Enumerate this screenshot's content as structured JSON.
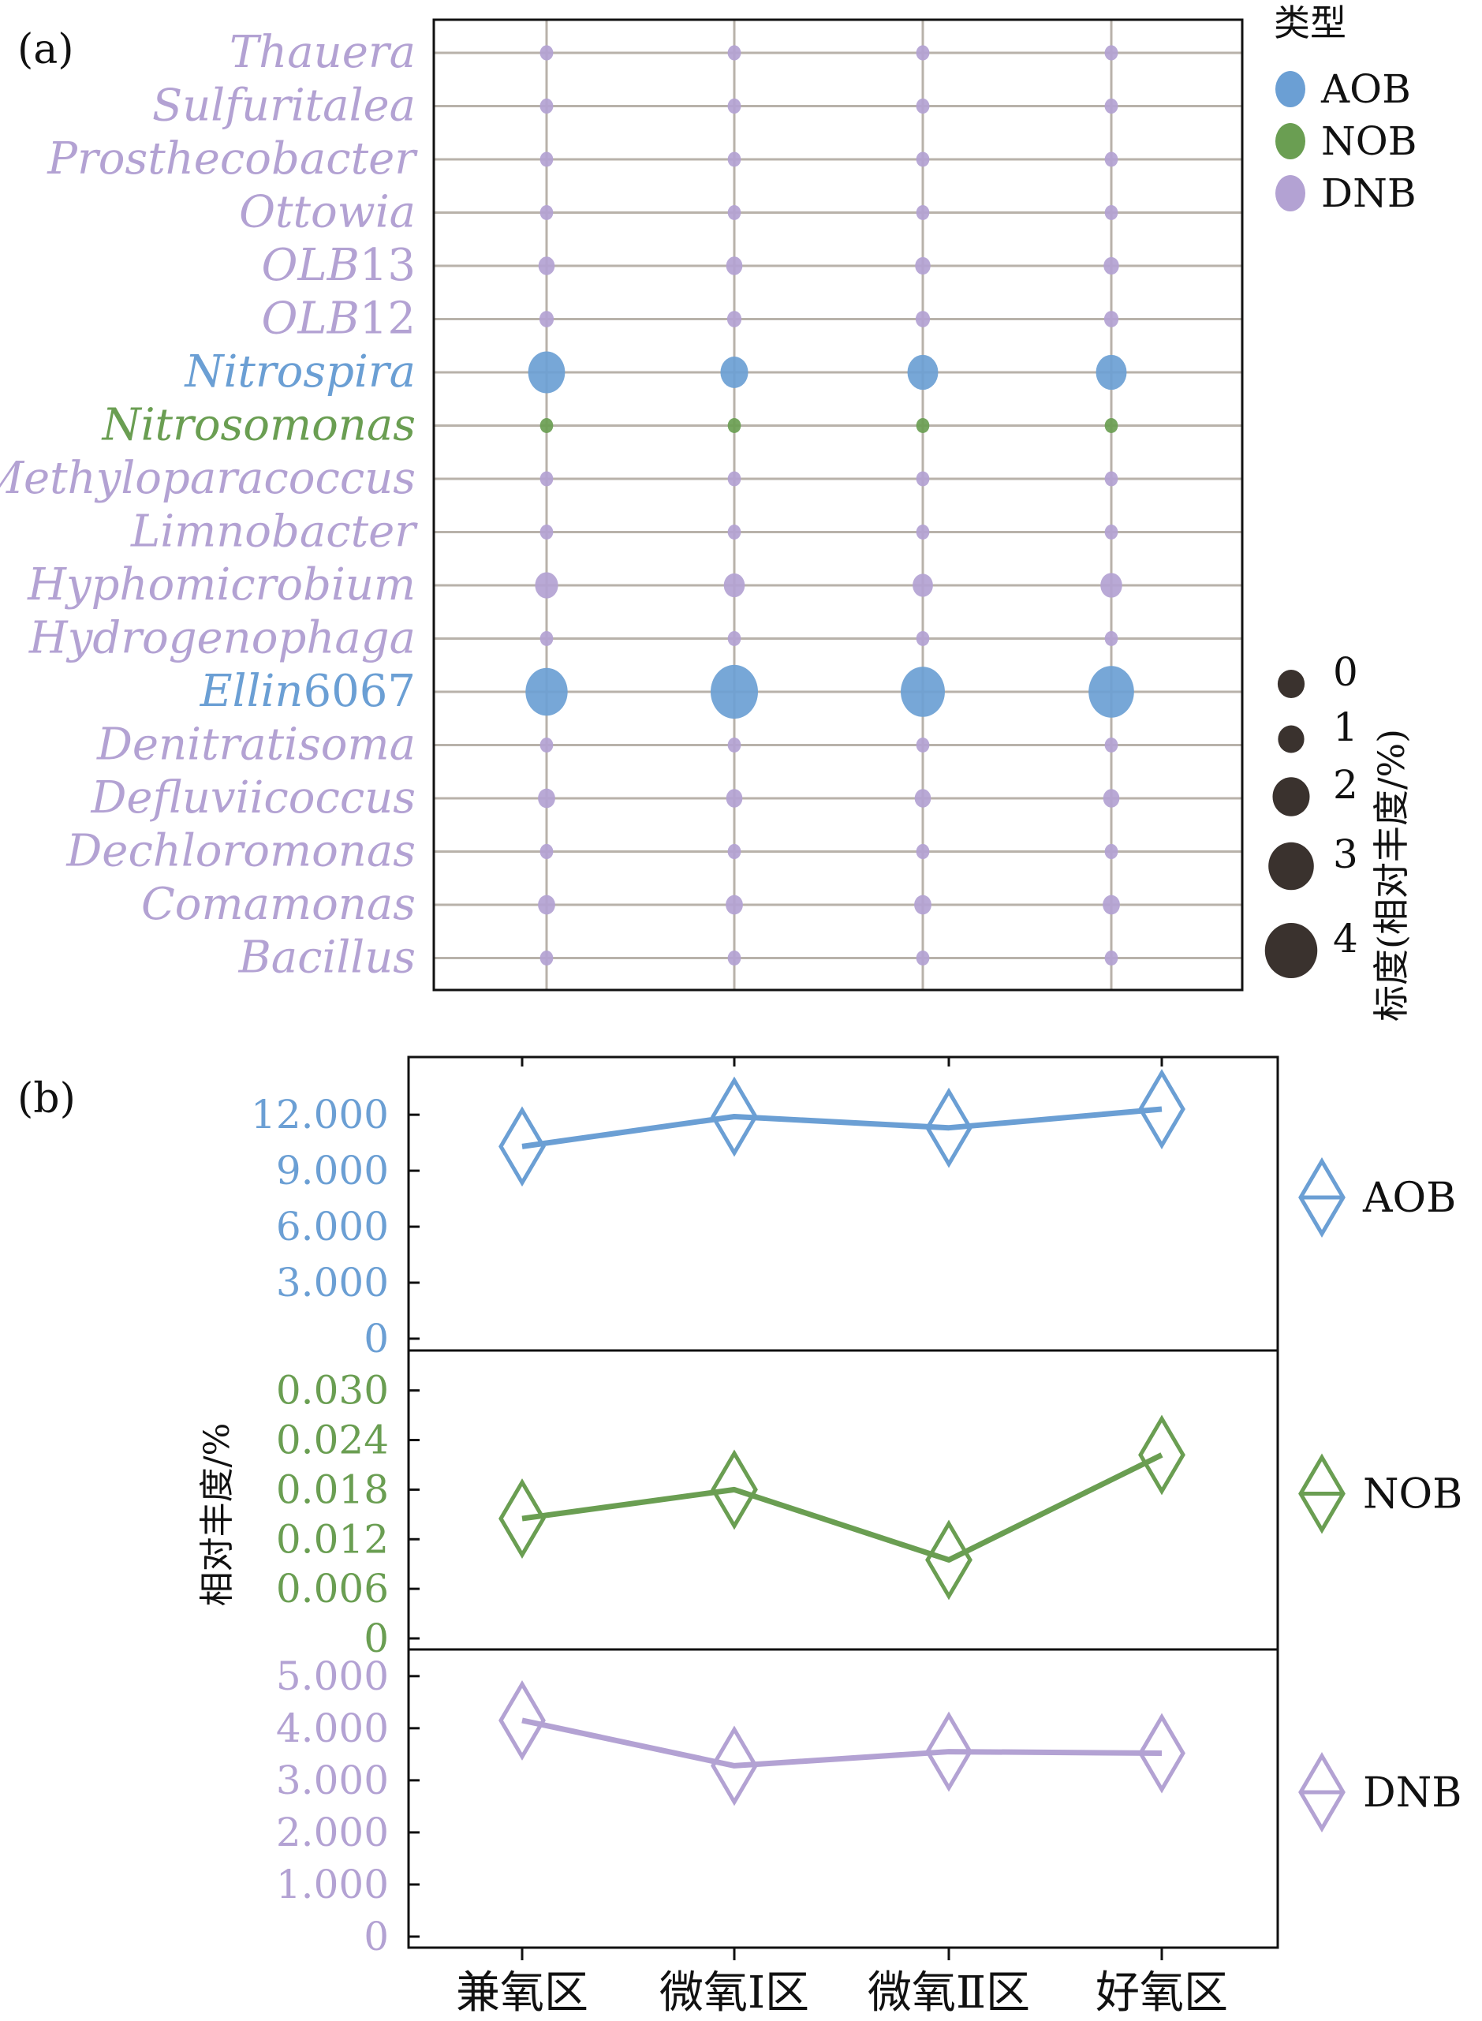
{
  "panels": {
    "a_label": "(a)",
    "b_label": "(b)"
  },
  "colors": {
    "AOB": "#6b9fd4",
    "NOB": "#6a9e52",
    "DNB": "#b3a2d3",
    "grid": "#b8b2aa",
    "scale_dot": "#3a322e",
    "frame": "#111111"
  },
  "chart_data": [
    {
      "type": "scatter",
      "subtype": "bubble",
      "panel": "(a)",
      "categories": [
        "兼氧区",
        "微氧Ⅰ区",
        "微氧Ⅱ区",
        "好氧区"
      ],
      "genera": [
        {
          "name": "Thauera",
          "type": "DNB",
          "values": [
            0.3,
            0.3,
            0.3,
            0.3
          ]
        },
        {
          "name": "Sulfuritalea",
          "type": "DNB",
          "values": [
            0.3,
            0.3,
            0.3,
            0.3
          ]
        },
        {
          "name": "Prosthecobacter",
          "type": "DNB",
          "values": [
            0.25,
            0.25,
            0.25,
            0.25
          ]
        },
        {
          "name": "Ottowia",
          "type": "DNB",
          "values": [
            0.25,
            0.25,
            0.25,
            0.25
          ]
        },
        {
          "name": "OLB13",
          "type": "DNB",
          "values": [
            0.45,
            0.45,
            0.4,
            0.4
          ]
        },
        {
          "name": "OLB12",
          "type": "DNB",
          "values": [
            0.35,
            0.35,
            0.35,
            0.35
          ]
        },
        {
          "name": "Nitrospira",
          "type": "AOB",
          "values": [
            2.3,
            1.3,
            1.6,
            1.6
          ]
        },
        {
          "name": "Nitrosomonas",
          "type": "NOB",
          "values": [
            0.2,
            0.2,
            0.2,
            0.2
          ]
        },
        {
          "name": "Methyloparacoccus",
          "type": "DNB",
          "values": [
            0.25,
            0.25,
            0.25,
            0.25
          ]
        },
        {
          "name": "Limnobacter",
          "type": "DNB",
          "values": [
            0.25,
            0.25,
            0.25,
            0.25
          ]
        },
        {
          "name": "Hyphomicrobium",
          "type": "DNB",
          "values": [
            0.9,
            0.75,
            0.7,
            0.8
          ]
        },
        {
          "name": "Hydrogenophaga",
          "type": "DNB",
          "values": [
            0.2,
            0.2,
            0.2,
            0.2
          ]
        },
        {
          "name": "Ellin6067",
          "type": "AOB",
          "values": [
            3.0,
            3.8,
            3.3,
            3.5
          ]
        },
        {
          "name": "Denitratisoma",
          "type": "DNB",
          "values": [
            0.25,
            0.25,
            0.25,
            0.25
          ]
        },
        {
          "name": "Defluviicoccus",
          "type": "DNB",
          "values": [
            0.5,
            0.45,
            0.45,
            0.45
          ]
        },
        {
          "name": "Dechloromonas",
          "type": "DNB",
          "values": [
            0.3,
            0.3,
            0.3,
            0.3
          ]
        },
        {
          "name": "Comamonas",
          "type": "DNB",
          "values": [
            0.5,
            0.5,
            0.5,
            0.5
          ]
        },
        {
          "name": "Bacillus",
          "type": "DNB",
          "values": [
            0.2,
            0.2,
            0.2,
            0.2
          ]
        }
      ],
      "legend_type_title": "类型",
      "legend_types": [
        "AOB",
        "NOB",
        "DNB"
      ],
      "size_legend_title": "标度(相对丰度/%)",
      "size_legend_values": [
        0,
        1,
        2,
        3,
        4
      ]
    },
    {
      "type": "line",
      "panel": "(b)",
      "ylabel": "相对丰度/%",
      "categories": [
        "兼氧区",
        "微氧Ⅰ区",
        "微氧Ⅱ区",
        "好氧区"
      ],
      "series": [
        {
          "name": "AOB",
          "values": [
            10.3,
            11.9,
            11.3,
            12.3
          ],
          "ylim": [
            0,
            14.5
          ],
          "ticks": [
            0,
            3.0,
            6.0,
            9.0,
            12.0
          ],
          "tick_labels": [
            "0",
            "3.000",
            "6.000",
            "9.000",
            "12.000"
          ]
        },
        {
          "name": "NOB",
          "values": [
            0.0145,
            0.018,
            0.0095,
            0.0222
          ],
          "ylim": [
            0,
            0.0335
          ],
          "ticks": [
            0,
            0.006,
            0.012,
            0.018,
            0.024,
            0.03
          ],
          "tick_labels": [
            "0",
            "0.006",
            "0.012",
            "0.018",
            "0.024",
            "0.030"
          ]
        },
        {
          "name": "DNB",
          "values": [
            4.15,
            3.28,
            3.55,
            3.52
          ],
          "ylim": [
            0,
            5.3
          ],
          "ticks": [
            0,
            1.0,
            2.0,
            3.0,
            4.0,
            5.0
          ],
          "tick_labels": [
            "0",
            "1.000",
            "2.000",
            "3.000",
            "4.000",
            "5.000"
          ]
        }
      ]
    }
  ]
}
